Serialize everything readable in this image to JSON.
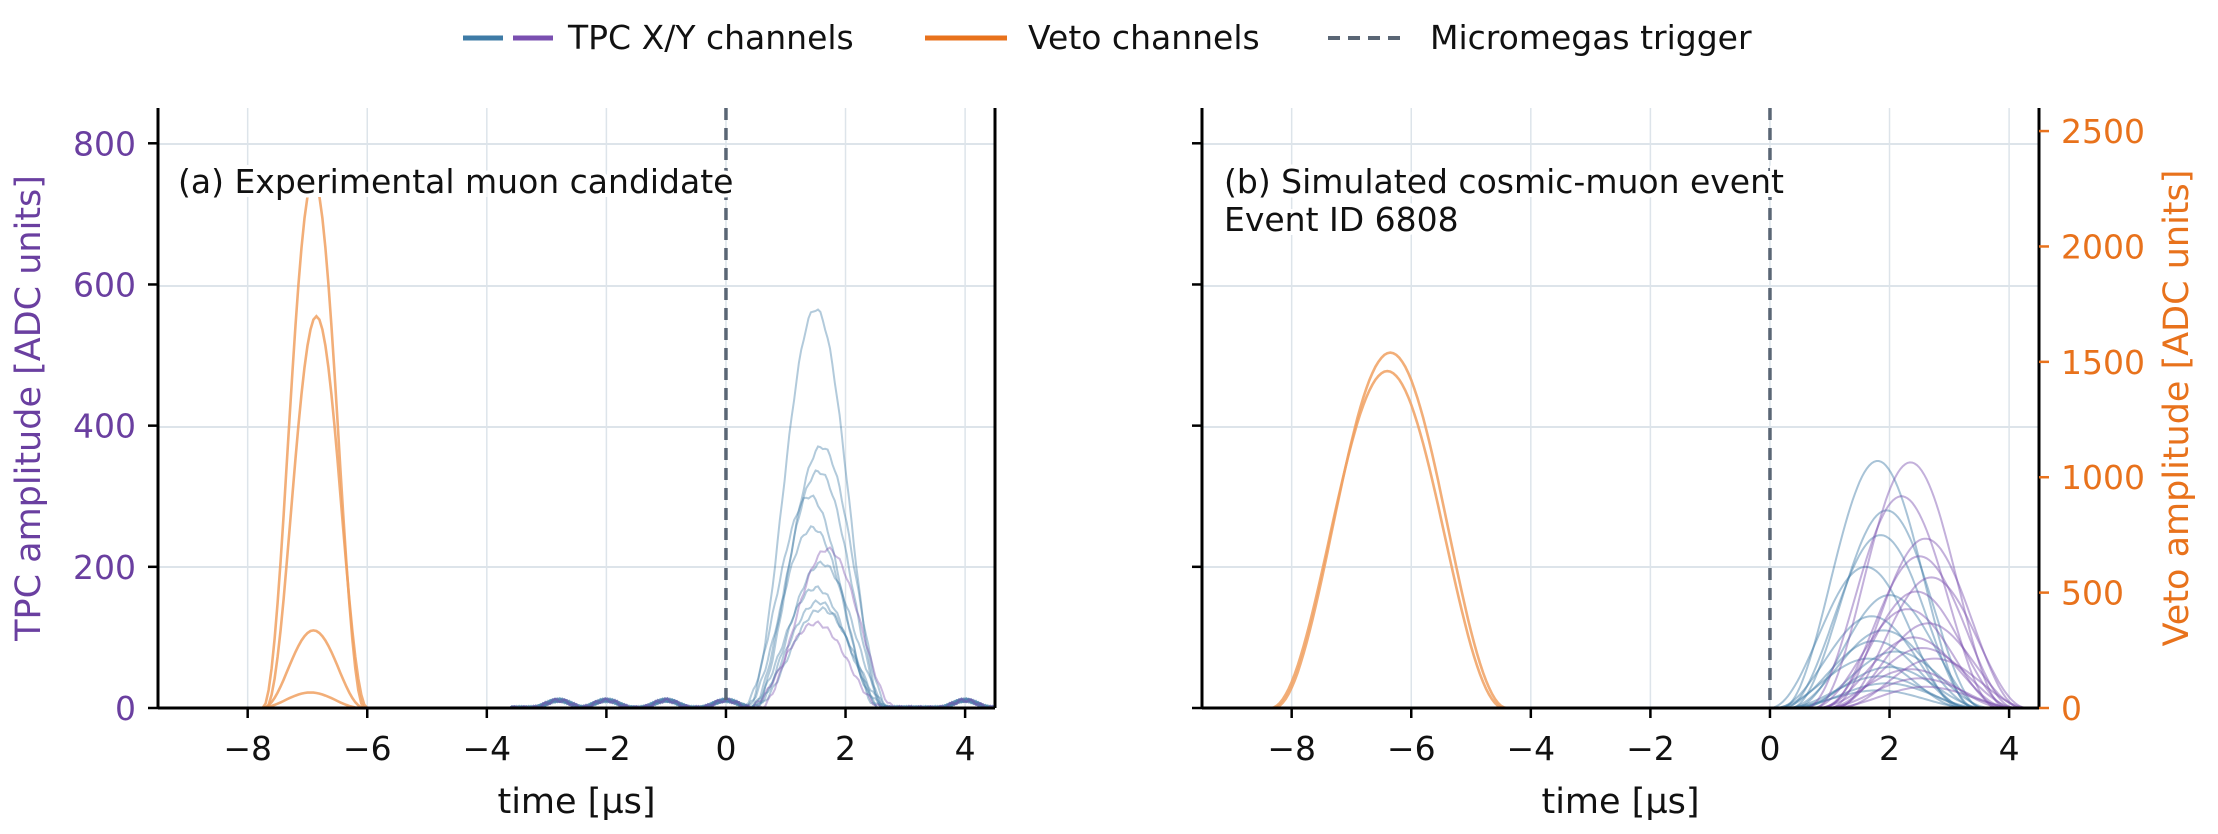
{
  "legend": {
    "items": [
      {
        "label": "TPC X/Y channels",
        "kind": "dual",
        "colors": [
          "#3e7ba6",
          "#7a4fb0"
        ]
      },
      {
        "label": "Veto channels",
        "kind": "solid",
        "colors": [
          "#e8721c"
        ]
      },
      {
        "label": "Micromegas trigger",
        "kind": "dashed",
        "colors": [
          "#5a6675"
        ]
      }
    ]
  },
  "colors": {
    "tpc_x": "#3e7ba6",
    "tpc_y": "#7a4fb0",
    "veto": "#f0a060",
    "veto_axis": "#e8721c",
    "tpc_axis": "#6a3fa0",
    "trigger": "#5a6675",
    "grid": "#dde4ea"
  },
  "chart_data": [
    {
      "type": "line",
      "panel": "a",
      "annotation": [
        "(a) Experimental muon candidate"
      ],
      "xlabel": "time [µs]",
      "ylabel": "TPC amplitude [ADC units]",
      "xlim": [
        -9.5,
        4.5
      ],
      "ylim": [
        0,
        850
      ],
      "xticks": [
        -8,
        -6,
        -4,
        -2,
        0,
        2,
        4
      ],
      "yticks": [
        0,
        200,
        400,
        600,
        800
      ],
      "grid": true,
      "trigger_x": 0,
      "veto_peaks": [
        {
          "center": -6.9,
          "amplitude": 750
        },
        {
          "center": -6.85,
          "amplitude": 555
        },
        {
          "center": -6.9,
          "amplitude": 110
        },
        {
          "center": -6.95,
          "amplitude": 22
        }
      ],
      "tpc_x_peaks": [
        {
          "center": 1.5,
          "amplitude": 565
        },
        {
          "center": 1.6,
          "amplitude": 370
        },
        {
          "center": 1.55,
          "amplitude": 335
        },
        {
          "center": 1.4,
          "amplitude": 300
        },
        {
          "center": 1.45,
          "amplitude": 255
        },
        {
          "center": 1.6,
          "amplitude": 205
        },
        {
          "center": 1.5,
          "amplitude": 170
        },
        {
          "center": 1.55,
          "amplitude": 150
        },
        {
          "center": 1.6,
          "amplitude": 140
        }
      ],
      "tpc_y_peaks": [
        {
          "center": 1.7,
          "amplitude": 225
        },
        {
          "center": 1.5,
          "amplitude": 120
        }
      ],
      "baseline_bumps": [
        -2.8,
        -2.0,
        -1.0,
        0.0,
        4.0
      ]
    },
    {
      "type": "line",
      "panel": "b",
      "annotation": [
        "(b) Simulated cosmic-muon event",
        "Event ID 6808"
      ],
      "xlabel": "time [µs]",
      "ylabel": "Veto amplitude [ADC units]",
      "xlim": [
        -9.5,
        4.5
      ],
      "ylim": [
        0,
        2600
      ],
      "xticks": [
        -8,
        -6,
        -4,
        -2,
        0,
        2,
        4
      ],
      "yticks": [
        0,
        500,
        1000,
        1500,
        2000,
        2500
      ],
      "tpc_ylim": [
        0,
        850
      ],
      "grid": true,
      "trigger_x": 0,
      "veto_peaks": [
        {
          "center": -6.35,
          "amplitude": 1540
        },
        {
          "center": -6.4,
          "amplitude": 1460
        }
      ],
      "tpc_x_peaks": [
        {
          "center": 1.8,
          "amplitude": 350
        },
        {
          "center": 1.95,
          "amplitude": 280
        },
        {
          "center": 1.85,
          "amplitude": 245
        },
        {
          "center": 1.6,
          "amplitude": 200
        },
        {
          "center": 2.0,
          "amplitude": 160
        },
        {
          "center": 1.7,
          "amplitude": 130
        },
        {
          "center": 1.9,
          "amplitude": 110
        },
        {
          "center": 1.75,
          "amplitude": 95
        },
        {
          "center": 2.1,
          "amplitude": 80
        },
        {
          "center": 1.65,
          "amplitude": 70
        },
        {
          "center": 2.0,
          "amplitude": 58
        },
        {
          "center": 1.85,
          "amplitude": 45
        },
        {
          "center": 1.95,
          "amplitude": 35
        },
        {
          "center": 1.8,
          "amplitude": 25
        }
      ],
      "tpc_y_peaks": [
        {
          "center": 2.35,
          "amplitude": 348
        },
        {
          "center": 2.2,
          "amplitude": 300
        },
        {
          "center": 2.6,
          "amplitude": 240
        },
        {
          "center": 2.5,
          "amplitude": 215
        },
        {
          "center": 2.7,
          "amplitude": 185
        },
        {
          "center": 2.45,
          "amplitude": 165
        },
        {
          "center": 2.3,
          "amplitude": 140
        },
        {
          "center": 2.65,
          "amplitude": 120
        },
        {
          "center": 2.4,
          "amplitude": 100
        },
        {
          "center": 2.55,
          "amplitude": 85
        },
        {
          "center": 2.75,
          "amplitude": 70
        },
        {
          "center": 2.35,
          "amplitude": 55
        },
        {
          "center": 2.5,
          "amplitude": 42
        },
        {
          "center": 2.6,
          "amplitude": 30
        }
      ]
    }
  ]
}
